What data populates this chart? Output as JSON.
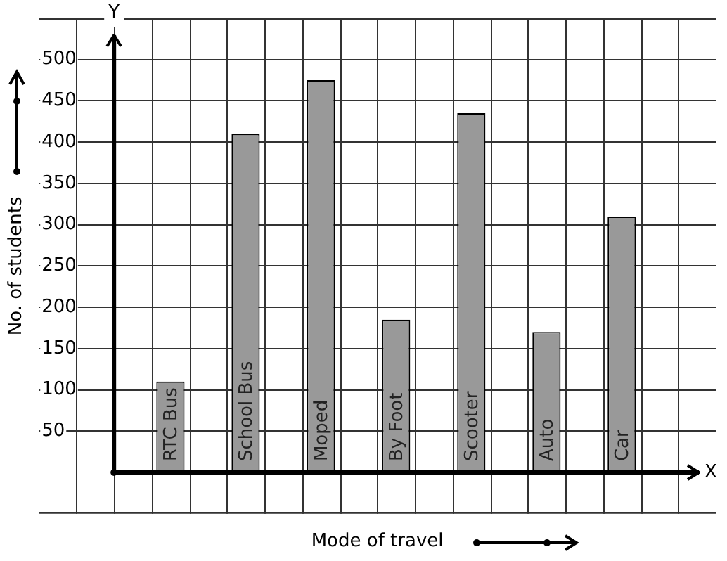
{
  "chart_data": {
    "type": "bar",
    "xlabel": "Mode of travel",
    "ylabel": "No. of students",
    "categories": [
      "RTC Bus",
      "School Bus",
      "Moped",
      "By Foot",
      "Scooter",
      "Auto",
      "Car"
    ],
    "values": [
      110,
      410,
      475,
      185,
      435,
      170,
      310
    ],
    "color": "#999999",
    "ylim": [
      -50,
      550
    ],
    "yticks": [
      50,
      100,
      150,
      200,
      250,
      300,
      350,
      400,
      450,
      500
    ],
    "grid": true,
    "legend": false,
    "annotations": [
      "X",
      "Y"
    ]
  }
}
